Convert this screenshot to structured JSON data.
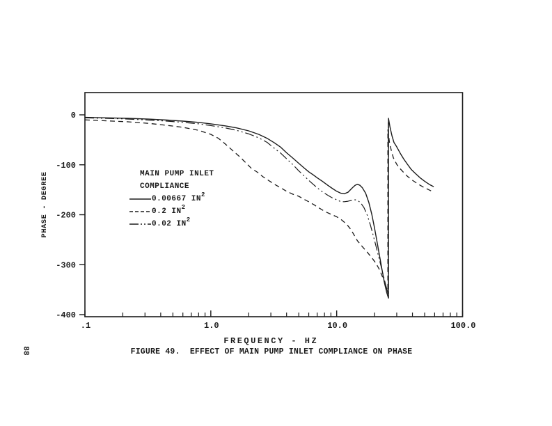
{
  "page": {
    "number": "88"
  },
  "figure_caption": "FIGURE 49.  EFFECT OF MAIN PUMP INLET COMPLIANCE ON PHASE",
  "colors": {
    "ink": "#1b1b1b",
    "paper": "#ffffff"
  },
  "chart_data": {
    "type": "line",
    "title": "",
    "xlabel": "FREQUENCY - HZ",
    "ylabel": "PHASE - DEGREE",
    "x_scale": "log",
    "xlim": [
      0.1,
      100
    ],
    "ylim": [
      -400,
      0
    ],
    "grid": false,
    "x_ticks": [
      {
        "v": 0.1,
        "label": ".1"
      },
      {
        "v": 1,
        "label": "1.0"
      },
      {
        "v": 10,
        "label": "10.0"
      },
      {
        "v": 100,
        "label": "100.0"
      }
    ],
    "y_ticks": [
      {
        "v": 0,
        "label": "0"
      },
      {
        "v": -100,
        "label": "-100"
      },
      {
        "v": -200,
        "label": "-200"
      },
      {
        "v": -300,
        "label": "-300"
      },
      {
        "v": -400,
        "label": "-400"
      }
    ],
    "legend": {
      "position": "upper-left-inside",
      "title_lines": [
        "MAIN PUMP INLET",
        "COMPLIANCE"
      ]
    },
    "resonance_note": "all curves jump through a vertical asymptote near 26 Hz",
    "series": [
      {
        "name": "0.00667 IN²",
        "style": "solid",
        "points": [
          [
            0.1,
            -5
          ],
          [
            0.15,
            -6
          ],
          [
            0.22,
            -7
          ],
          [
            0.32,
            -8.5
          ],
          [
            0.45,
            -10.5
          ],
          [
            0.6,
            -12.5
          ],
          [
            0.8,
            -15
          ],
          [
            1.0,
            -18
          ],
          [
            1.3,
            -22
          ],
          [
            1.6,
            -26
          ],
          [
            2.0,
            -32
          ],
          [
            2.4,
            -39
          ],
          [
            2.8,
            -47
          ],
          [
            3.2,
            -56
          ],
          [
            3.6,
            -65
          ],
          [
            4.0,
            -76
          ],
          [
            4.5,
            -87
          ],
          [
            5.0,
            -97
          ],
          [
            5.5,
            -106
          ],
          [
            6.0,
            -114
          ],
          [
            6.5,
            -120
          ],
          [
            7.0,
            -126
          ],
          [
            7.7,
            -133
          ],
          [
            8.5,
            -141
          ],
          [
            9.2,
            -147
          ],
          [
            10.0,
            -153
          ],
          [
            10.8,
            -157
          ],
          [
            11.5,
            -158
          ],
          [
            12.3,
            -155
          ],
          [
            13.2,
            -147
          ],
          [
            14.0,
            -141
          ],
          [
            14.6,
            -139
          ],
          [
            15.3,
            -141
          ],
          [
            16.0,
            -146
          ],
          [
            17.0,
            -157
          ],
          [
            18.0,
            -175
          ],
          [
            19.0,
            -199
          ],
          [
            20.0,
            -227
          ],
          [
            21.0,
            -256
          ],
          [
            22.0,
            -285
          ],
          [
            23.0,
            -312
          ],
          [
            24.0,
            -337
          ],
          [
            25.0,
            -356
          ],
          [
            25.8,
            -367
          ],
          [
            25.8,
            -7
          ],
          [
            26.5,
            -24
          ],
          [
            27.5,
            -42
          ],
          [
            28.5,
            -55
          ],
          [
            30,
            -64
          ],
          [
            32,
            -77
          ],
          [
            34,
            -88
          ],
          [
            36.5,
            -99
          ],
          [
            39,
            -109
          ],
          [
            42,
            -117
          ],
          [
            46,
            -126
          ],
          [
            50,
            -133
          ],
          [
            55,
            -140
          ],
          [
            59,
            -144
          ]
        ]
      },
      {
        "name": "0.2 IN²",
        "style": "dashed",
        "points": [
          [
            0.1,
            -10
          ],
          [
            0.15,
            -12
          ],
          [
            0.22,
            -14
          ],
          [
            0.32,
            -17
          ],
          [
            0.45,
            -21
          ],
          [
            0.6,
            -25
          ],
          [
            0.8,
            -31
          ],
          [
            1.0,
            -39
          ],
          [
            1.15,
            -47
          ],
          [
            1.3,
            -58
          ],
          [
            1.5,
            -72
          ],
          [
            1.7,
            -84
          ],
          [
            1.9,
            -96
          ],
          [
            2.1,
            -107
          ],
          [
            2.35,
            -115
          ],
          [
            2.6,
            -124
          ],
          [
            2.9,
            -132
          ],
          [
            3.2,
            -139
          ],
          [
            3.6,
            -146
          ],
          [
            4.0,
            -153
          ],
          [
            4.5,
            -159
          ],
          [
            5.0,
            -163
          ],
          [
            5.5,
            -169
          ],
          [
            6.0,
            -174
          ],
          [
            6.6,
            -180
          ],
          [
            7.2,
            -186
          ],
          [
            8.0,
            -193
          ],
          [
            9.0,
            -199
          ],
          [
            10,
            -204
          ],
          [
            10.8,
            -209
          ],
          [
            12,
            -219
          ],
          [
            13,
            -230
          ],
          [
            14.6,
            -252
          ],
          [
            16,
            -264
          ],
          [
            17.5,
            -275
          ],
          [
            19,
            -286
          ],
          [
            20.5,
            -297
          ],
          [
            22,
            -311
          ],
          [
            23.5,
            -329
          ],
          [
            24.7,
            -344
          ],
          [
            25.5,
            -356
          ],
          [
            25.5,
            -30
          ],
          [
            26.3,
            -56
          ],
          [
            27.2,
            -72
          ],
          [
            28.2,
            -86
          ],
          [
            30,
            -99
          ],
          [
            32,
            -108
          ],
          [
            34.5,
            -117
          ],
          [
            36.5,
            -123
          ],
          [
            40,
            -131
          ],
          [
            44,
            -138
          ],
          [
            49,
            -145
          ],
          [
            53,
            -149
          ],
          [
            57,
            -153
          ]
        ]
      },
      {
        "name": "0.02 IN²",
        "style": "dashdot",
        "points": [
          [
            0.1,
            -6
          ],
          [
            0.2,
            -8
          ],
          [
            0.3,
            -10
          ],
          [
            0.45,
            -12.5
          ],
          [
            0.6,
            -15
          ],
          [
            0.8,
            -18
          ],
          [
            1.0,
            -21.5
          ],
          [
            1.3,
            -26
          ],
          [
            1.6,
            -31
          ],
          [
            2.0,
            -38
          ],
          [
            2.4,
            -46
          ],
          [
            2.8,
            -55
          ],
          [
            3.2,
            -67
          ],
          [
            3.6,
            -77
          ],
          [
            4.0,
            -88
          ],
          [
            4.5,
            -100
          ],
          [
            5.0,
            -112
          ],
          [
            5.5,
            -122
          ],
          [
            6.0,
            -131
          ],
          [
            6.5,
            -139
          ],
          [
            7.0,
            -146
          ],
          [
            7.7,
            -154
          ],
          [
            8.5,
            -161
          ],
          [
            9.2,
            -166
          ],
          [
            10.0,
            -170
          ],
          [
            10.8,
            -174
          ],
          [
            11.5,
            -174
          ],
          [
            12.3,
            -173
          ],
          [
            13.2,
            -171
          ],
          [
            14.0,
            -170
          ],
          [
            14.8,
            -172
          ],
          [
            15.6,
            -177
          ],
          [
            16.5,
            -186
          ],
          [
            17.5,
            -201
          ],
          [
            18.5,
            -220
          ],
          [
            19.5,
            -241
          ],
          [
            20.5,
            -262
          ],
          [
            21.5,
            -283
          ],
          [
            22.5,
            -303
          ],
          [
            23.5,
            -322
          ],
          [
            24.5,
            -340
          ],
          [
            25.3,
            -353
          ],
          [
            25.7,
            -361
          ],
          [
            25.7,
            -15
          ]
        ]
      }
    ]
  }
}
